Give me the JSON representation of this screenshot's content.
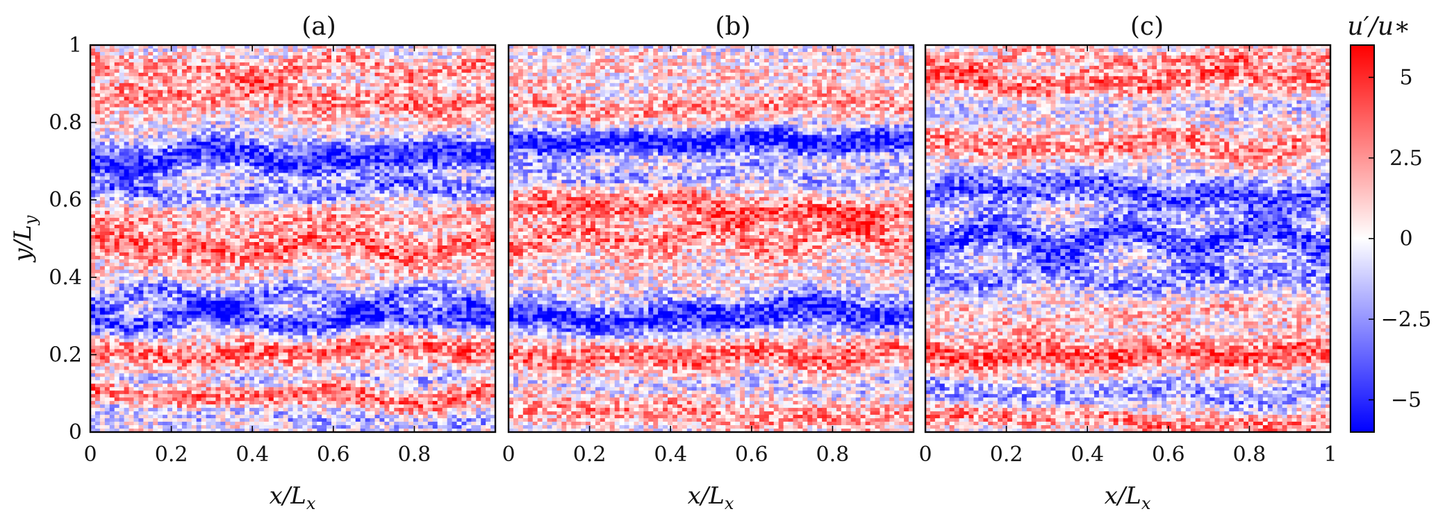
{
  "chart_data": [
    {
      "type": "heatmap",
      "title": "(a)",
      "xlabel": "x/L_x",
      "ylabel": "y/L_y",
      "xlim": [
        0,
        1
      ],
      "ylim": [
        0,
        1
      ],
      "xticks": [
        "0",
        "0.2",
        "0.4",
        "0.6",
        "0.8"
      ],
      "yticks": [
        "0",
        "0.2",
        "0.4",
        "0.6",
        "0.8",
        "1"
      ],
      "bands": [
        {
          "y": 0.04,
          "value": -2.0,
          "width": 0.025
        },
        {
          "y": 0.09,
          "value": 3.5,
          "width": 0.03
        },
        {
          "y": 0.14,
          "value": -1.5,
          "width": 0.02
        },
        {
          "y": 0.21,
          "value": 3.5,
          "width": 0.04
        },
        {
          "y": 0.29,
          "value": -4.5,
          "width": 0.035
        },
        {
          "y": 0.35,
          "value": -3.0,
          "width": 0.03
        },
        {
          "y": 0.41,
          "value": 0.5,
          "width": 0.025
        },
        {
          "y": 0.48,
          "value": 3.5,
          "width": 0.045
        },
        {
          "y": 0.56,
          "value": 2.0,
          "width": 0.025
        },
        {
          "y": 0.62,
          "value": -3.0,
          "width": 0.025
        },
        {
          "y": 0.71,
          "value": -5.0,
          "width": 0.045
        },
        {
          "y": 0.78,
          "value": 0.5,
          "width": 0.02
        },
        {
          "y": 0.86,
          "value": 3.0,
          "width": 0.04
        },
        {
          "y": 0.94,
          "value": 2.5,
          "width": 0.03
        }
      ]
    },
    {
      "type": "heatmap",
      "title": "(b)",
      "xlabel": "x/L_x",
      "ylabel": "",
      "xlim": [
        0,
        1
      ],
      "ylim": [
        0,
        1
      ],
      "xticks": [
        "0",
        "0.2",
        "0.4",
        "0.6",
        "0.8"
      ],
      "yticks": [],
      "bands": [
        {
          "y": 0.05,
          "value": 2.5,
          "width": 0.035
        },
        {
          "y": 0.12,
          "value": -1.0,
          "width": 0.025
        },
        {
          "y": 0.2,
          "value": 3.5,
          "width": 0.04
        },
        {
          "y": 0.3,
          "value": -5.0,
          "width": 0.045
        },
        {
          "y": 0.4,
          "value": 0.5,
          "width": 0.025
        },
        {
          "y": 0.5,
          "value": 3.0,
          "width": 0.045
        },
        {
          "y": 0.58,
          "value": 3.5,
          "width": 0.035
        },
        {
          "y": 0.66,
          "value": -2.0,
          "width": 0.025
        },
        {
          "y": 0.75,
          "value": -5.5,
          "width": 0.035
        },
        {
          "y": 0.84,
          "value": 2.5,
          "width": 0.035
        },
        {
          "y": 0.93,
          "value": 1.0,
          "width": 0.03
        }
      ]
    },
    {
      "type": "heatmap",
      "title": "(c)",
      "xlabel": "x/L_x",
      "ylabel": "",
      "xlim": [
        0,
        1
      ],
      "ylim": [
        0,
        1
      ],
      "xticks": [
        "0",
        "0.2",
        "0.4",
        "0.6",
        "0.8",
        "1"
      ],
      "yticks": [],
      "bands": [
        {
          "y": 0.03,
          "value": 3.0,
          "width": 0.025
        },
        {
          "y": 0.1,
          "value": -2.5,
          "width": 0.03
        },
        {
          "y": 0.2,
          "value": 4.0,
          "width": 0.04
        },
        {
          "y": 0.3,
          "value": 1.5,
          "width": 0.03
        },
        {
          "y": 0.4,
          "value": -3.0,
          "width": 0.035
        },
        {
          "y": 0.5,
          "value": -4.5,
          "width": 0.045
        },
        {
          "y": 0.62,
          "value": -4.0,
          "width": 0.045
        },
        {
          "y": 0.74,
          "value": 3.0,
          "width": 0.035
        },
        {
          "y": 0.84,
          "value": -1.0,
          "width": 0.025
        },
        {
          "y": 0.91,
          "value": 3.5,
          "width": 0.035
        },
        {
          "y": 0.97,
          "value": 2.0,
          "width": 0.02
        }
      ]
    }
  ],
  "colorbar": {
    "label": "u′/u∗",
    "range": [
      -6,
      6
    ],
    "ticks": [
      "5",
      "2.5",
      "0",
      "−2.5",
      "−5"
    ],
    "tick_values": [
      5,
      2.5,
      0,
      -2.5,
      -5
    ],
    "colors": {
      "negative": "#0000ff",
      "zero": "#ffffff",
      "positive": "#ff0000"
    }
  }
}
